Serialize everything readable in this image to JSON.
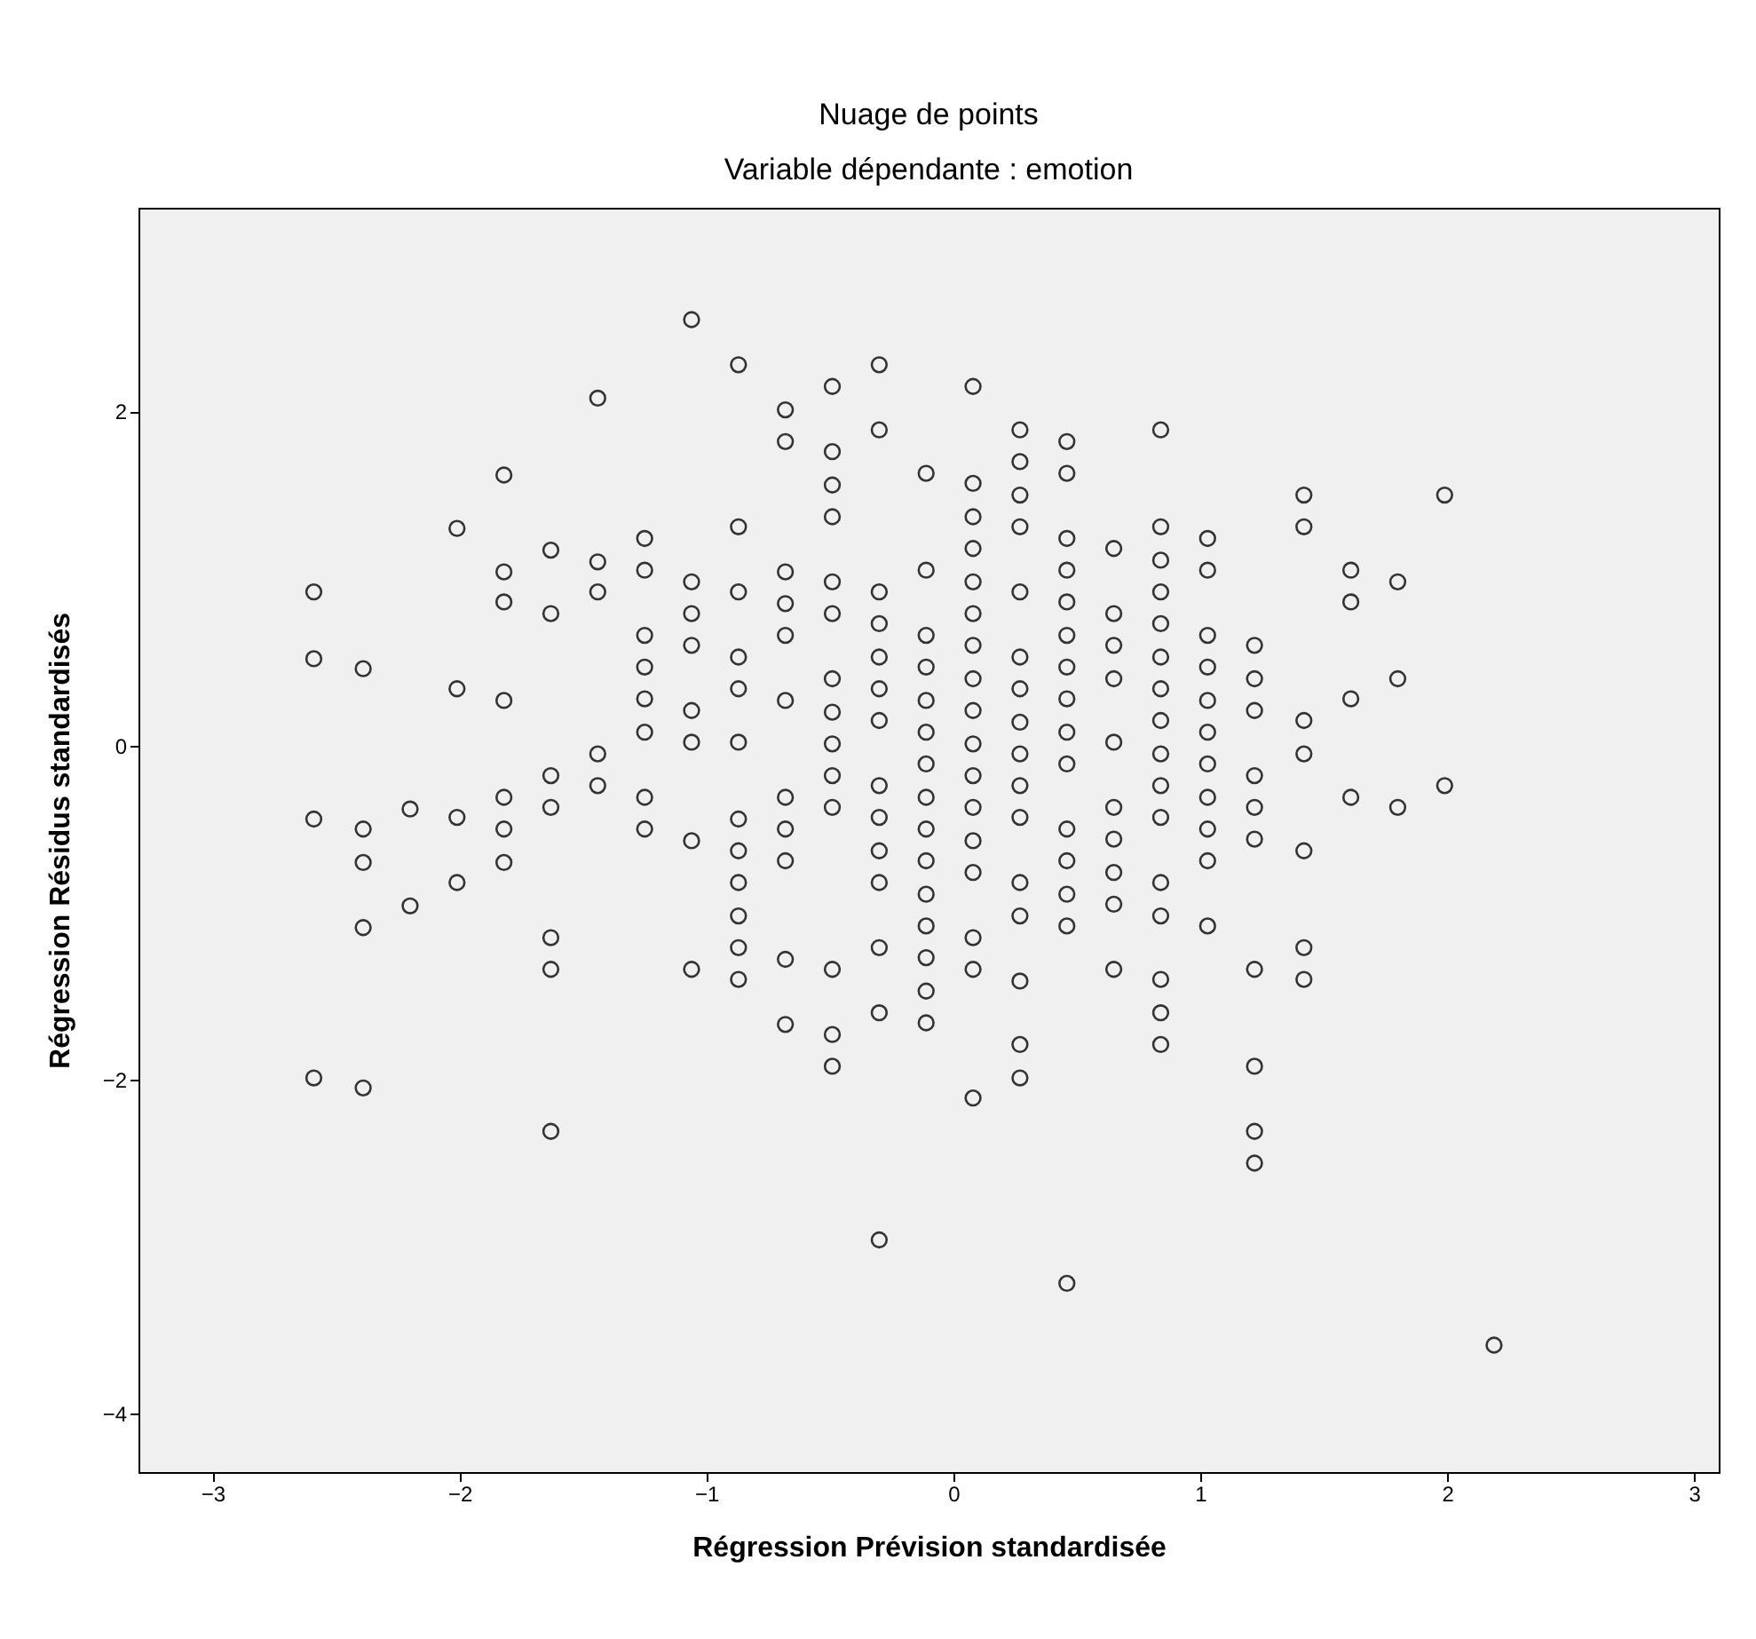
{
  "chart_data": {
    "type": "scatter",
    "title": "Nuage de points",
    "subtitle": "Variable dépendante : emotion",
    "xlabel": "Régression Prévision standardisée",
    "ylabel": "Régression Résidus standardisés",
    "color": "#333333",
    "marker": "circle",
    "xlim": [
      -3.3,
      3.1
    ],
    "ylim": [
      -4.35,
      3.22
    ],
    "xticks": [
      -3,
      -2,
      -1,
      0,
      1,
      2,
      3
    ],
    "yticks": [
      -4,
      -2,
      0,
      2
    ],
    "x": [
      -2.59,
      -2.59,
      -2.59,
      -2.59,
      -2.39,
      -2.39,
      -2.39,
      -2.39,
      -2.39,
      -2.2,
      -2.2,
      -2.01,
      -2.01,
      -2.01,
      -2.01,
      -1.82,
      -1.82,
      -1.82,
      -1.82,
      -1.82,
      -1.82,
      -1.82,
      -1.63,
      -1.63,
      -1.63,
      -1.63,
      -1.63,
      -1.63,
      -1.63,
      -1.44,
      -1.44,
      -1.44,
      -1.44,
      -1.44,
      -1.25,
      -1.25,
      -1.25,
      -1.25,
      -1.25,
      -1.25,
      -1.25,
      -1.25,
      -1.06,
      -1.06,
      -1.06,
      -1.06,
      -1.06,
      -1.06,
      -1.06,
      -1.06,
      -0.87,
      -0.87,
      -0.87,
      -0.87,
      -0.87,
      -0.87,
      -0.87,
      -0.87,
      -0.87,
      -0.87,
      -0.87,
      -0.87,
      -0.68,
      -0.68,
      -0.68,
      -0.68,
      -0.68,
      -0.68,
      -0.68,
      -0.68,
      -0.68,
      -0.68,
      -0.68,
      -0.49,
      -0.49,
      -0.49,
      -0.49,
      -0.49,
      -0.49,
      -0.49,
      -0.49,
      -0.49,
      -0.49,
      -0.49,
      -0.49,
      -0.49,
      -0.49,
      -0.3,
      -0.3,
      -0.3,
      -0.3,
      -0.3,
      -0.3,
      -0.3,
      -0.3,
      -0.3,
      -0.3,
      -0.3,
      -0.3,
      -0.3,
      -0.3,
      -0.11,
      -0.11,
      -0.11,
      -0.11,
      -0.11,
      -0.11,
      -0.11,
      -0.11,
      -0.11,
      -0.11,
      -0.11,
      -0.11,
      -0.11,
      -0.11,
      -0.11,
      0.08,
      0.08,
      0.08,
      0.08,
      0.08,
      0.08,
      0.08,
      0.08,
      0.08,
      0.08,
      0.08,
      0.08,
      0.08,
      0.08,
      0.08,
      0.08,
      0.08,
      0.27,
      0.27,
      0.27,
      0.27,
      0.27,
      0.27,
      0.27,
      0.27,
      0.27,
      0.27,
      0.27,
      0.27,
      0.27,
      0.27,
      0.27,
      0.27,
      0.46,
      0.46,
      0.46,
      0.46,
      0.46,
      0.46,
      0.46,
      0.46,
      0.46,
      0.46,
      0.46,
      0.46,
      0.46,
      0.46,
      0.46,
      0.65,
      0.65,
      0.65,
      0.65,
      0.65,
      0.65,
      0.65,
      0.65,
      0.65,
      0.65,
      0.84,
      0.84,
      0.84,
      0.84,
      0.84,
      0.84,
      0.84,
      0.84,
      0.84,
      0.84,
      0.84,
      0.84,
      0.84,
      0.84,
      0.84,
      0.84,
      1.03,
      1.03,
      1.03,
      1.03,
      1.03,
      1.03,
      1.03,
      1.03,
      1.03,
      1.03,
      1.03,
      1.22,
      1.22,
      1.22,
      1.22,
      1.22,
      1.22,
      1.22,
      1.22,
      1.22,
      1.22,
      1.42,
      1.42,
      1.42,
      1.42,
      1.42,
      1.42,
      1.42,
      1.61,
      1.61,
      1.61,
      1.61,
      1.8,
      1.8,
      1.8,
      1.99,
      1.99,
      2.19
    ],
    "values": [
      0.92,
      0.52,
      -0.44,
      -1.99,
      0.46,
      -0.5,
      -0.7,
      -1.09,
      -2.05,
      -0.38,
      -0.96,
      1.3,
      0.34,
      -0.43,
      -0.82,
      1.62,
      1.04,
      0.86,
      0.27,
      -0.31,
      -0.5,
      -0.7,
      1.17,
      0.79,
      -0.18,
      -0.37,
      -1.15,
      -1.34,
      -2.31,
      2.08,
      1.1,
      0.92,
      -0.05,
      -0.24,
      1.24,
      1.05,
      0.66,
      0.47,
      0.28,
      0.08,
      -0.31,
      -0.5,
      2.55,
      0.98,
      0.79,
      0.6,
      0.21,
      0.02,
      -0.57,
      -1.34,
      2.28,
      1.31,
      0.92,
      0.53,
      0.34,
      0.02,
      -0.44,
      -0.63,
      -0.82,
      -1.02,
      -1.21,
      -1.4,
      2.01,
      1.82,
      1.04,
      0.85,
      0.66,
      0.27,
      -0.31,
      -0.5,
      -0.69,
      -1.28,
      -1.67,
      2.15,
      1.76,
      1.56,
      1.37,
      0.98,
      0.79,
      0.4,
      0.2,
      0.01,
      -0.18,
      -0.37,
      -1.34,
      -1.73,
      -1.92,
      2.28,
      1.89,
      0.92,
      0.73,
      0.53,
      0.34,
      0.15,
      -0.24,
      -0.43,
      -0.63,
      -0.82,
      -1.21,
      -1.6,
      -2.96,
      1.63,
      1.05,
      0.66,
      0.47,
      0.27,
      0.08,
      -0.11,
      -0.31,
      -0.5,
      -0.69,
      -0.89,
      -1.08,
      -1.27,
      -1.47,
      -1.66,
      2.15,
      1.57,
      1.37,
      1.18,
      0.98,
      0.79,
      0.6,
      0.4,
      0.21,
      0.01,
      -0.18,
      -0.37,
      -0.57,
      -0.76,
      -1.15,
      -1.34,
      -2.11,
      1.89,
      1.7,
      1.5,
      1.31,
      0.92,
      0.53,
      0.34,
      0.14,
      -0.05,
      -0.24,
      -0.43,
      -0.82,
      -1.02,
      -1.41,
      -1.79,
      -1.99,
      1.82,
      1.63,
      1.24,
      1.05,
      0.86,
      0.66,
      0.47,
      0.28,
      0.08,
      -0.11,
      -0.5,
      -0.69,
      -0.89,
      -1.08,
      -3.22,
      1.18,
      0.79,
      0.6,
      0.4,
      0.02,
      -0.37,
      -0.56,
      -0.76,
      -0.95,
      -1.34,
      1.89,
      1.31,
      1.11,
      0.92,
      0.73,
      0.53,
      0.34,
      0.15,
      -0.05,
      -0.24,
      -0.43,
      -0.82,
      -1.02,
      -1.4,
      -1.6,
      -1.79,
      1.24,
      1.05,
      0.66,
      0.47,
      0.27,
      0.08,
      -0.11,
      -0.31,
      -0.5,
      -0.69,
      -1.08,
      0.6,
      0.4,
      0.21,
      -0.18,
      -0.37,
      -0.56,
      -1.34,
      -1.92,
      -2.31,
      -2.5,
      1.5,
      1.31,
      0.15,
      -0.05,
      -0.63,
      -1.21,
      -1.4,
      1.05,
      0.86,
      0.28,
      -0.31,
      0.98,
      0.4,
      -0.37,
      1.5,
      -0.24,
      -3.59
    ]
  }
}
